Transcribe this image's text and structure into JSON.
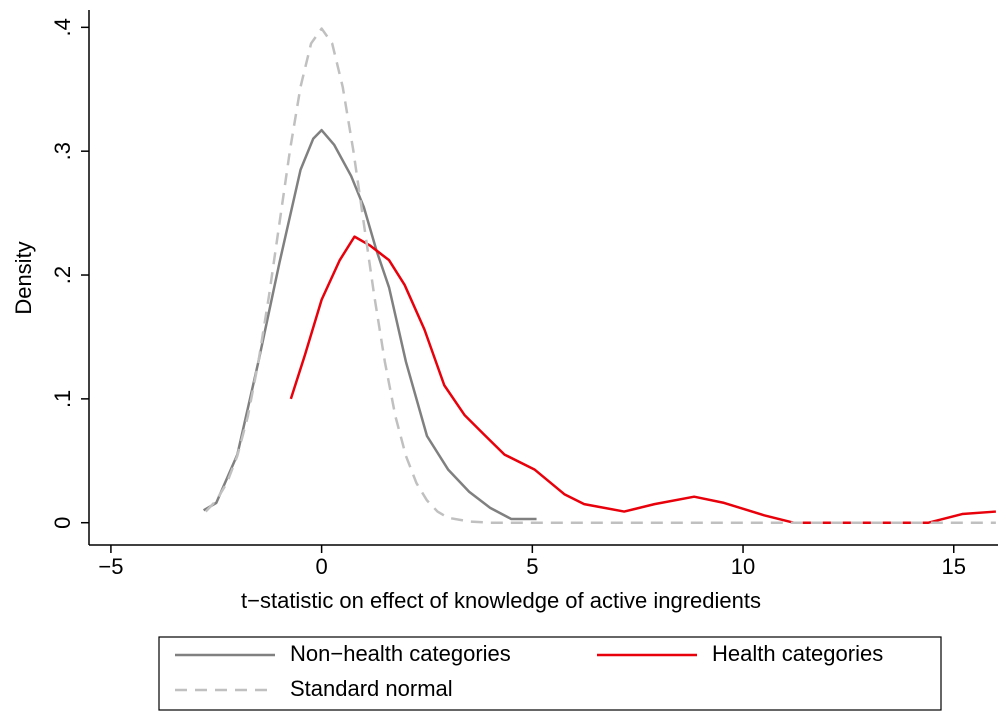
{
  "chart_data": {
    "type": "line",
    "xlabel": "t−statistic on effect of knowledge of active ingredients",
    "ylabel": "Density",
    "xlim": [
      -5.52,
      16.05
    ],
    "ylim": [
      -0.018,
      0.414
    ],
    "xticks": [
      {
        "value": -5,
        "label": "−5"
      },
      0,
      5,
      10,
      15
    ],
    "yticks": [
      0,
      {
        "value": 0.1,
        "label": ".1"
      },
      {
        "value": 0.2,
        "label": ".2"
      },
      {
        "value": 0.3,
        "label": ".3"
      },
      {
        "value": 0.4,
        "label": ".4"
      }
    ],
    "grid": false,
    "legend": "bottom",
    "series": [
      {
        "name": "Non−health categories",
        "color": "#808080",
        "style": "solid",
        "x": [
          -2.8,
          -2.5,
          -2,
          -1.5,
          -1,
          -0.5,
          -0.2,
          0,
          0.3,
          0.7,
          1,
          1.3,
          1.6,
          2,
          2.5,
          3,
          3.5,
          4,
          4.5,
          5.1
        ],
        "values": [
          0.01,
          0.016,
          0.055,
          0.13,
          0.21,
          0.285,
          0.31,
          0.317,
          0.305,
          0.28,
          0.255,
          0.22,
          0.19,
          0.13,
          0.07,
          0.043,
          0.025,
          0.012,
          0.003,
          0.003
        ]
      },
      {
        "name": "Health categories",
        "color": "#e8000b",
        "style": "solid",
        "x": [
          -0.73,
          -0.4,
          0,
          0.43,
          0.78,
          1.14,
          1.6,
          1.97,
          2.44,
          2.91,
          3.39,
          3.86,
          4.34,
          5.05,
          5.76,
          6.23,
          7.18,
          7.9,
          8.84,
          9.55,
          10.5,
          11.2,
          14.4,
          15.2,
          16
        ],
        "values": [
          0.1,
          0.135,
          0.18,
          0.212,
          0.231,
          0.224,
          0.212,
          0.192,
          0.156,
          0.111,
          0.087,
          0.071,
          0.055,
          0.043,
          0.023,
          0.015,
          0.009,
          0.015,
          0.021,
          0.016,
          0.006,
          0,
          0,
          0.007,
          0.009
        ]
      },
      {
        "name": "Standard normal",
        "color": "#c0c0c0",
        "style": "dashed",
        "x": [
          -2.75,
          -2.5,
          -2.25,
          -2,
          -1.75,
          -1.5,
          -1.25,
          -1,
          -0.75,
          -0.5,
          -0.25,
          0,
          0.25,
          0.5,
          0.75,
          1,
          1.25,
          1.5,
          1.75,
          2,
          2.25,
          2.5,
          2.75,
          3,
          3.5,
          4,
          16
        ],
        "values": [
          0.009,
          0.018,
          0.032,
          0.054,
          0.086,
          0.13,
          0.183,
          0.242,
          0.301,
          0.352,
          0.387,
          0.399,
          0.387,
          0.352,
          0.301,
          0.242,
          0.183,
          0.13,
          0.086,
          0.054,
          0.032,
          0.018,
          0.009,
          0.004,
          0.001,
          0,
          0
        ]
      }
    ]
  }
}
